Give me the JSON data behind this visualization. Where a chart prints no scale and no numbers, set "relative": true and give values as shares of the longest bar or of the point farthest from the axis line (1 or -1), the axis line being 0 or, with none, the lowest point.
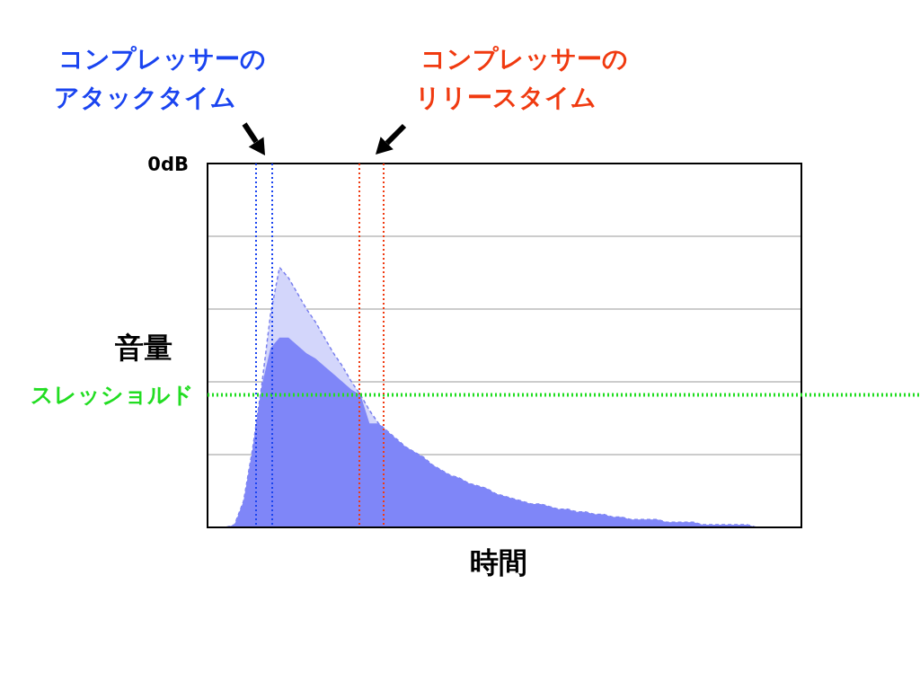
{
  "chart_data": {
    "type": "area",
    "relative": true,
    "ylabel": "音量",
    "xlabel": "時間",
    "grid": true,
    "annotations": [
      "0dB",
      "コンプレッサーのアタックタイム",
      "コンプレッサーのリリースタイム"
    ],
    "categories": [
      null,
      null,
      null,
      null,
      null,
      null,
      null,
      null,
      null,
      null,
      null,
      null,
      null,
      null,
      null,
      null,
      null,
      null,
      null,
      null,
      null,
      null,
      null,
      null,
      null,
      null,
      null,
      null,
      null,
      null,
      null,
      null,
      null,
      null,
      null,
      null,
      null,
      null,
      null,
      null,
      null,
      null,
      null,
      null,
      null,
      null,
      null,
      null,
      null,
      null,
      null,
      null,
      null,
      null,
      null,
      null,
      null,
      null,
      null,
      null,
      null,
      null,
      null,
      null,
      null,
      null,
      null
    ],
    "series": [
      {
        "color": "#d3d6fb",
        "line_style": "dashed",
        "values": [
          0,
          0,
          0,
          0.01,
          0.1,
          0.3,
          0.54,
          0.82,
          1.0,
          0.96,
          0.9,
          0.84,
          0.79,
          0.73,
          0.67,
          0.62,
          0.56,
          0.51,
          0.45,
          0.4,
          0.37,
          0.34,
          0.31,
          0.29,
          0.27,
          0.24,
          0.22,
          0.2,
          0.19,
          0.17,
          0.16,
          0.15,
          0.13,
          0.12,
          0.11,
          0.1,
          0.09,
          0.09,
          0.08,
          0.07,
          0.07,
          0.06,
          0.06,
          0.05,
          0.05,
          0.04,
          0.04,
          0.03,
          0.03,
          0.03,
          0.03,
          0.02,
          0.02,
          0.02,
          0.02,
          0.01,
          0.01,
          0.01,
          0.01,
          0.01,
          0.01,
          0,
          0,
          0,
          0,
          0,
          0
        ]
      },
      {
        "color": "#7f86f8",
        "values": [
          0,
          0,
          0,
          0.01,
          0.1,
          0.3,
          0.54,
          0.69,
          0.73,
          0.73,
          0.7,
          0.67,
          0.65,
          0.62,
          0.59,
          0.56,
          0.53,
          0.51,
          0.4,
          0.4,
          0.37,
          0.34,
          0.31,
          0.29,
          0.27,
          0.24,
          0.22,
          0.2,
          0.19,
          0.17,
          0.16,
          0.15,
          0.13,
          0.12,
          0.11,
          0.1,
          0.09,
          0.09,
          0.08,
          0.07,
          0.07,
          0.06,
          0.06,
          0.05,
          0.05,
          0.04,
          0.04,
          0.03,
          0.03,
          0.03,
          0.03,
          0.02,
          0.02,
          0.02,
          0.02,
          0.01,
          0.01,
          0.01,
          0.01,
          0.01,
          0.01,
          0,
          0,
          0,
          0,
          0,
          0
        ]
      }
    ],
    "ref_lines": [
      {
        "axis": "y",
        "value": 0.51,
        "color": "#22dd22",
        "line_style": "dotted",
        "label": "スレッショルド"
      }
    ]
  }
}
